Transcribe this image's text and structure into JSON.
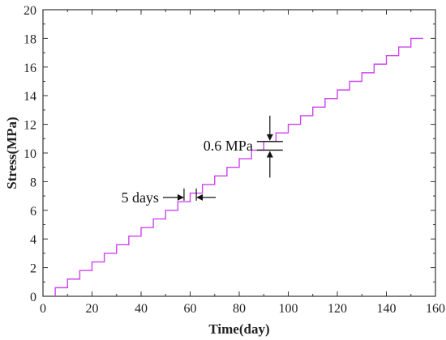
{
  "chart_data": {
    "type": "line",
    "title": "",
    "xlabel": "Time(day)",
    "ylabel": "Stress(MPa)",
    "xlim": [
      0,
      160
    ],
    "ylim": [
      0,
      20
    ],
    "x_ticks": [
      "0",
      "20",
      "40",
      "60",
      "80",
      "100",
      "120",
      "140",
      "160"
    ],
    "y_ticks": [
      "0",
      "2",
      "4",
      "6",
      "8",
      "10",
      "12",
      "14",
      "16",
      "18",
      "20"
    ],
    "grid": false,
    "legend": "none",
    "series": [
      {
        "color": "#cc44ee",
        "shape": "step",
        "x": [
          5,
          10,
          15,
          20,
          25,
          30,
          35,
          40,
          45,
          50,
          55,
          60,
          65,
          70,
          75,
          80,
          85,
          90,
          95,
          100,
          105,
          110,
          115,
          120,
          125,
          130,
          135,
          140,
          145,
          150,
          155
        ],
        "y": [
          0.0,
          0.6,
          1.2,
          1.8,
          2.4,
          3.0,
          3.6,
          4.2,
          4.8,
          5.4,
          6.0,
          6.6,
          7.2,
          7.8,
          8.4,
          9.0,
          9.6,
          10.2,
          10.8,
          11.4,
          12.0,
          12.6,
          13.2,
          13.8,
          14.4,
          15.0,
          15.6,
          16.2,
          16.8,
          17.4,
          18.0
        ]
      }
    ],
    "annotations": [
      {
        "text": "0.6 MPa",
        "x": 92.5,
        "y": 10.5,
        "type": "vertical-dimension"
      },
      {
        "text": "5 days",
        "x": 60,
        "y": 6.9,
        "type": "horizontal-dimension"
      }
    ]
  }
}
